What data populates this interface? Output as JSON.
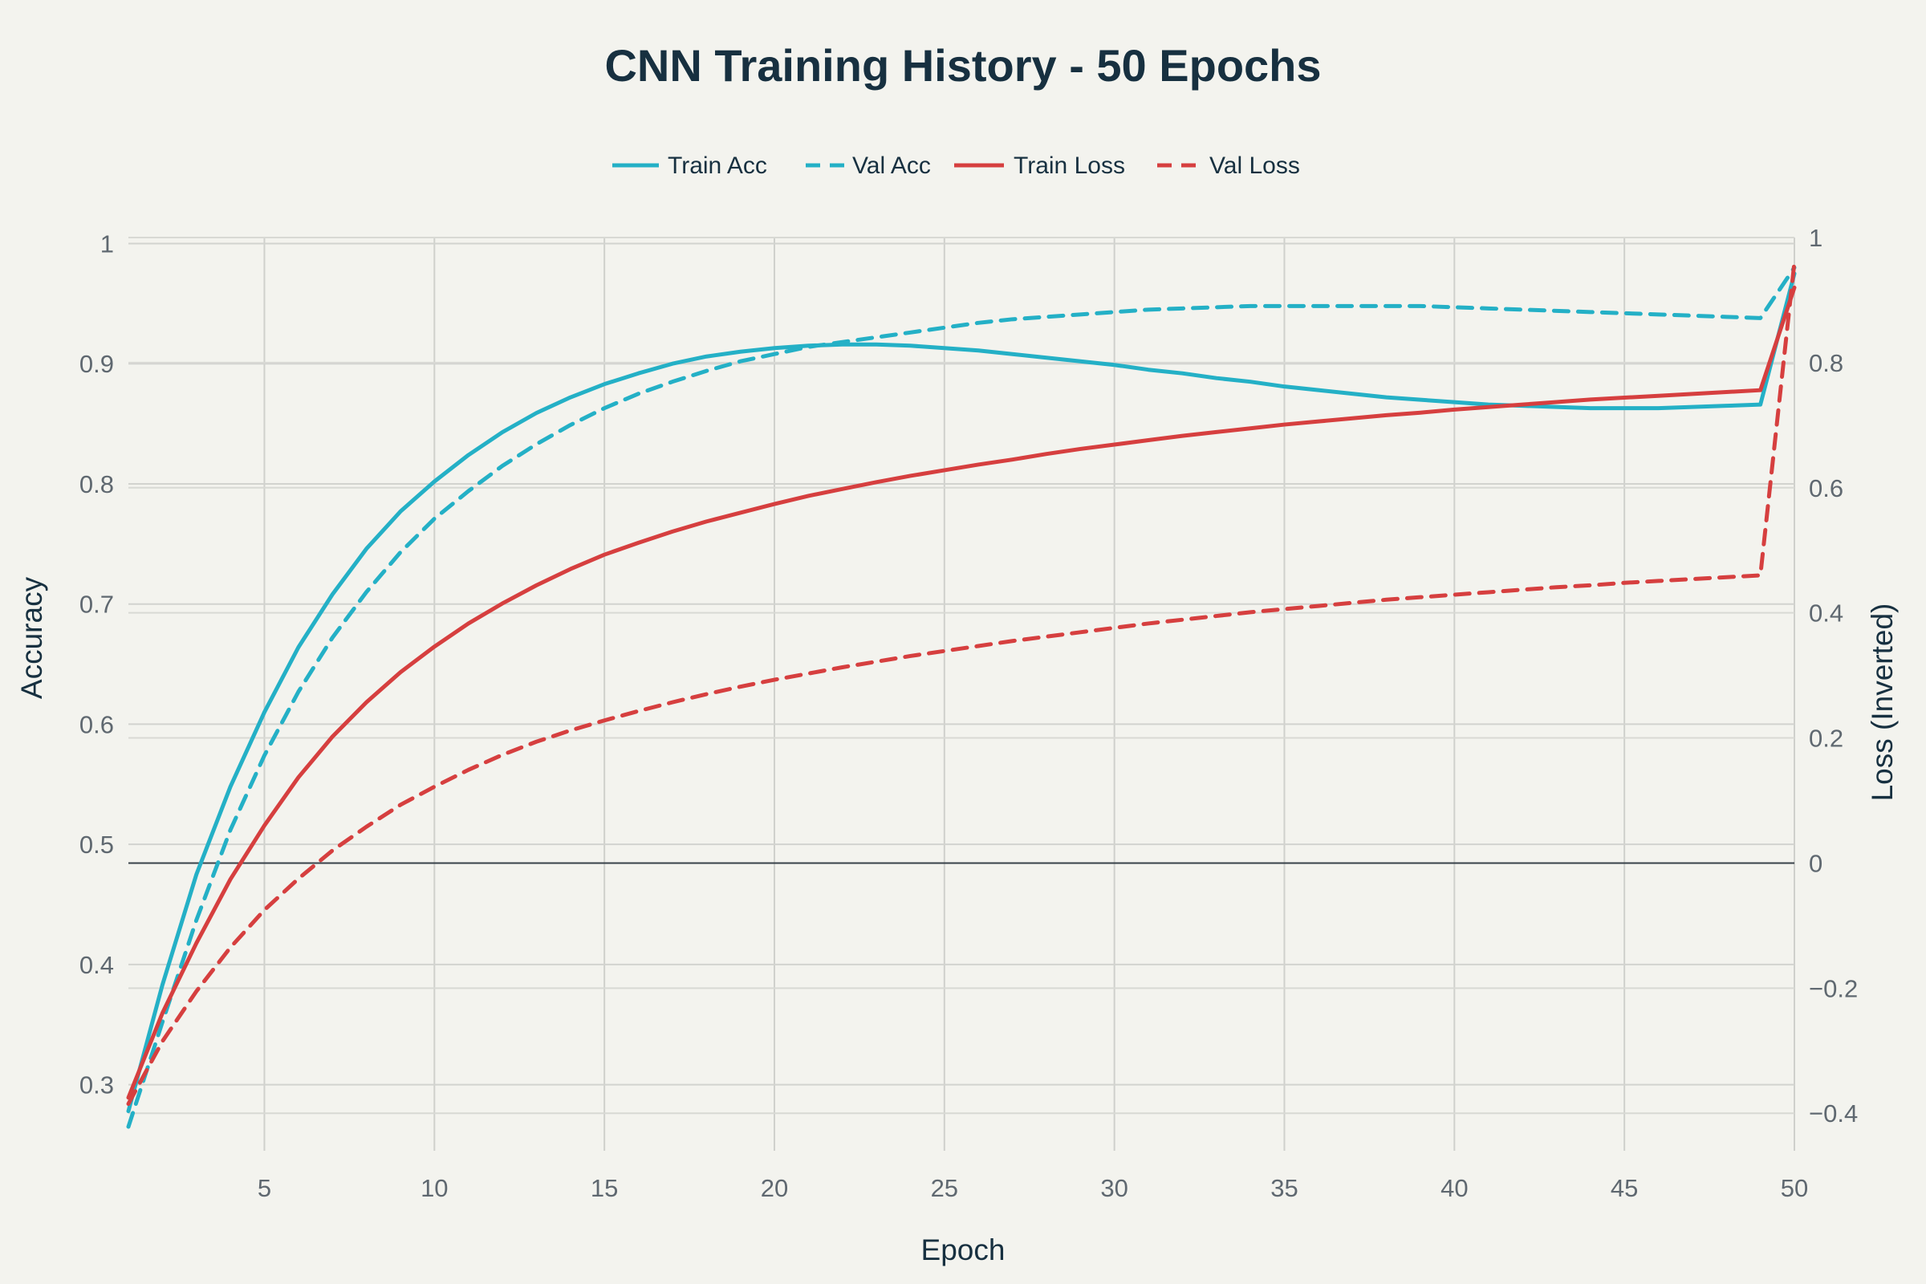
{
  "chart_data": {
    "type": "line",
    "title": "CNN Training History - 50 Epochs",
    "xlabel": "Epoch",
    "ylabel": "Accuracy",
    "y2label": "Loss (Inverted)",
    "x": [
      1,
      2,
      3,
      4,
      5,
      6,
      7,
      8,
      9,
      10,
      11,
      12,
      13,
      14,
      15,
      16,
      17,
      18,
      19,
      20,
      21,
      22,
      23,
      24,
      25,
      26,
      27,
      28,
      29,
      30,
      31,
      32,
      33,
      34,
      35,
      36,
      37,
      38,
      39,
      40,
      41,
      42,
      43,
      44,
      45,
      46,
      47,
      48,
      49,
      50
    ],
    "xlim": [
      1,
      50
    ],
    "ylim": [
      0.245,
      1.005
    ],
    "y2lim": [
      -0.46,
      1.0
    ],
    "x_ticks": [
      5,
      10,
      15,
      20,
      25,
      30,
      35,
      40,
      45,
      50
    ],
    "y_ticks": [
      0.3,
      0.4,
      0.5,
      0.6,
      0.7,
      0.8,
      0.9,
      1
    ],
    "y2_ticks": [
      -0.4,
      -0.2,
      0,
      0.2,
      0.4,
      0.6,
      0.8,
      1
    ],
    "grid": true,
    "legend_position": "top-center",
    "series": [
      {
        "name": "Train Acc",
        "axis": "left",
        "color": "#24b0c6",
        "dash": "solid",
        "values": [
          0.278,
          0.383,
          0.475,
          0.548,
          0.61,
          0.664,
          0.708,
          0.746,
          0.777,
          0.802,
          0.824,
          0.843,
          0.859,
          0.872,
          0.883,
          0.892,
          0.9,
          0.906,
          0.91,
          0.913,
          0.915,
          0.916,
          0.916,
          0.915,
          0.913,
          0.911,
          0.908,
          0.905,
          0.902,
          0.899,
          0.895,
          0.892,
          0.888,
          0.885,
          0.881,
          0.878,
          0.875,
          0.872,
          0.87,
          0.868,
          0.866,
          0.865,
          0.864,
          0.863,
          0.863,
          0.863,
          0.864,
          0.865,
          0.866,
          0.975
        ]
      },
      {
        "name": "Val Acc",
        "axis": "left",
        "color": "#24b0c6",
        "dash": "dashed",
        "values": [
          0.265,
          0.352,
          0.437,
          0.512,
          0.574,
          0.627,
          0.672,
          0.71,
          0.743,
          0.771,
          0.794,
          0.815,
          0.833,
          0.849,
          0.863,
          0.875,
          0.885,
          0.894,
          0.902,
          0.908,
          0.914,
          0.918,
          0.922,
          0.926,
          0.93,
          0.934,
          0.937,
          0.939,
          0.941,
          0.943,
          0.945,
          0.946,
          0.947,
          0.948,
          0.948,
          0.948,
          0.948,
          0.948,
          0.948,
          0.947,
          0.946,
          0.945,
          0.944,
          0.943,
          0.942,
          0.941,
          0.94,
          0.939,
          0.938,
          0.98
        ]
      },
      {
        "name": "Train Loss",
        "axis": "right",
        "color": "#d63f3f",
        "dash": "solid",
        "values": [
          -0.375,
          -0.24,
          -0.128,
          -0.026,
          0.06,
          0.137,
          0.202,
          0.257,
          0.305,
          0.346,
          0.383,
          0.415,
          0.444,
          0.47,
          0.493,
          0.512,
          0.53,
          0.546,
          0.56,
          0.574,
          0.587,
          0.598,
          0.609,
          0.619,
          0.628,
          0.637,
          0.645,
          0.654,
          0.662,
          0.669,
          0.676,
          0.683,
          0.689,
          0.695,
          0.701,
          0.706,
          0.711,
          0.716,
          0.72,
          0.725,
          0.729,
          0.733,
          0.737,
          0.741,
          0.744,
          0.747,
          0.75,
          0.753,
          0.756,
          0.92
        ]
      },
      {
        "name": "Val Loss",
        "axis": "right",
        "color": "#d63f3f",
        "dash": "dashed",
        "values": [
          -0.385,
          -0.285,
          -0.205,
          -0.135,
          -0.075,
          -0.025,
          0.02,
          0.058,
          0.093,
          0.122,
          0.149,
          0.173,
          0.194,
          0.212,
          0.228,
          0.243,
          0.257,
          0.27,
          0.282,
          0.293,
          0.303,
          0.313,
          0.322,
          0.331,
          0.339,
          0.347,
          0.355,
          0.362,
          0.369,
          0.376,
          0.383,
          0.389,
          0.395,
          0.401,
          0.406,
          0.411,
          0.416,
          0.421,
          0.425,
          0.429,
          0.433,
          0.437,
          0.441,
          0.444,
          0.448,
          0.451,
          0.454,
          0.457,
          0.46,
          0.96
        ]
      }
    ]
  }
}
